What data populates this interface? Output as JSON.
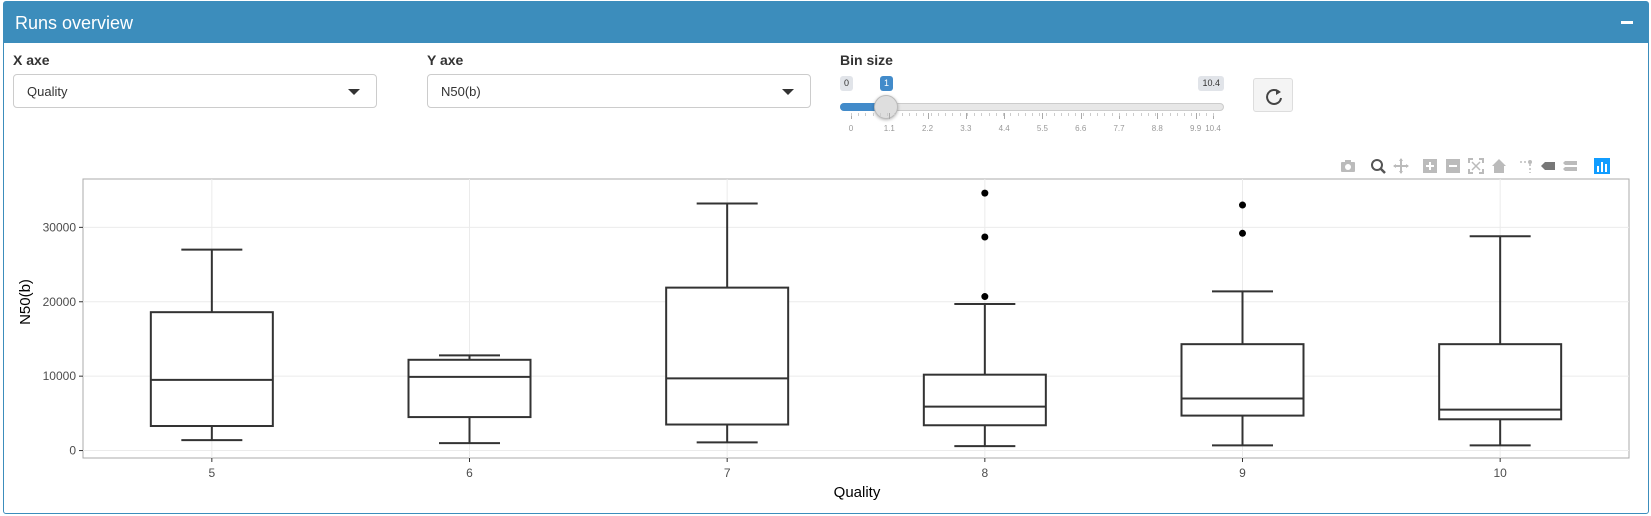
{
  "panel": {
    "title": "Runs overview",
    "header_color": "#3c8dbc"
  },
  "controls": {
    "x_axe": {
      "label": "X axe",
      "value": "Quality"
    },
    "y_axe": {
      "label": "Y axe",
      "value": "N50(b)"
    },
    "bin_size": {
      "label": "Bin size",
      "min_label": "0",
      "max_label": "10.4",
      "value_label": "1",
      "value": 1,
      "min": 0,
      "max": 10.4,
      "ticks": [
        "0",
        "1.1",
        "2.2",
        "3.3",
        "4.4",
        "5.5",
        "6.6",
        "7.7",
        "8.8",
        "9.9",
        "10.4"
      ]
    },
    "refresh_icon": "refresh-icon"
  },
  "plot_toolbar": {
    "icons": [
      "camera-icon",
      "zoom-icon",
      "pan-icon",
      "zoom-in-icon",
      "zoom-out-icon",
      "autoscale-icon",
      "home-icon",
      "spike-lines-icon",
      "hover-closest-icon",
      "hover-compare-icon",
      "plotly-logo-icon"
    ]
  },
  "chart_data": {
    "type": "box",
    "xlabel": "Quality",
    "ylabel": "N50(b)",
    "categories": [
      "5",
      "6",
      "7",
      "8",
      "9",
      "10"
    ],
    "y_ticks": [
      "0",
      "10000",
      "20000",
      "30000"
    ],
    "ylim": [
      -1000,
      36500
    ],
    "grid": true,
    "boxes": [
      {
        "category": "5",
        "whisker_low": 1400,
        "q1": 3300,
        "median": 9500,
        "q3": 18600,
        "whisker_high": 27000,
        "outliers": []
      },
      {
        "category": "6",
        "whisker_low": 1000,
        "q1": 4500,
        "median": 9900,
        "q3": 12200,
        "whisker_high": 12800,
        "outliers": []
      },
      {
        "category": "7",
        "whisker_low": 1100,
        "q1": 3500,
        "median": 9700,
        "q3": 21900,
        "whisker_high": 33200,
        "outliers": []
      },
      {
        "category": "8",
        "whisker_low": 600,
        "q1": 3400,
        "median": 5900,
        "q3": 10200,
        "whisker_high": 19700,
        "outliers": [
          20700,
          28700,
          34600
        ]
      },
      {
        "category": "9",
        "whisker_low": 700,
        "q1": 4700,
        "median": 7000,
        "q3": 14300,
        "whisker_high": 21400,
        "outliers": [
          29200,
          33000
        ]
      },
      {
        "category": "10",
        "whisker_low": 700,
        "q1": 4200,
        "median": 5500,
        "q3": 14300,
        "whisker_high": 28800,
        "outliers": []
      }
    ]
  }
}
